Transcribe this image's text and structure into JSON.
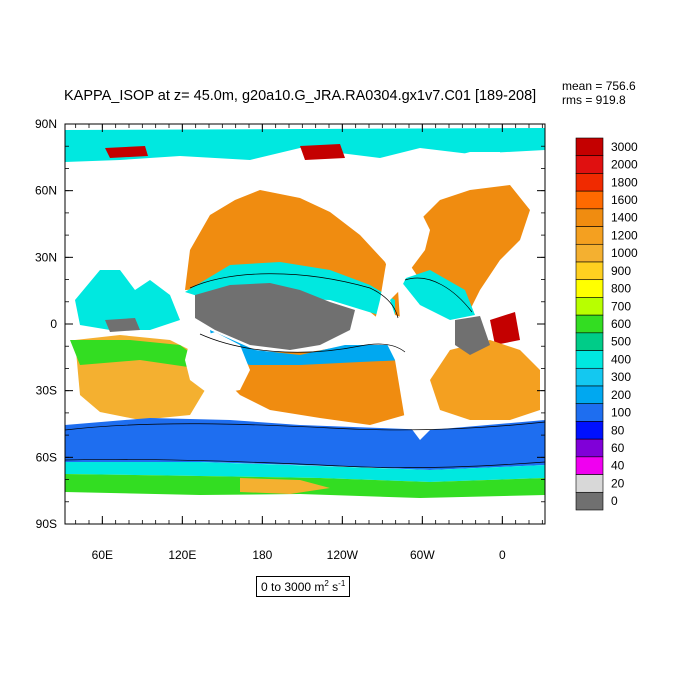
{
  "chart_data": {
    "type": "heatmap",
    "title": "KAPPA_ISOP at z=  45.0m, g20a10.G_JRA.RA0304.gx1v7.C01 [189-208]",
    "stats": {
      "mean": "mean = 756.6",
      "rms": "rms = 919.8"
    },
    "units": {
      "range_text": "0 to 3000 m",
      "exp": "2",
      "unit_tail": " s",
      "exp2": "-1"
    },
    "x_ticks": [
      {
        "lon": 60,
        "label": "60E"
      },
      {
        "lon": 120,
        "label": "120E"
      },
      {
        "lon": 180,
        "label": "180"
      },
      {
        "lon": 240,
        "label": "120W"
      },
      {
        "lon": 300,
        "label": "60W"
      },
      {
        "lon": 360,
        "label": "0"
      }
    ],
    "y_ticks": [
      {
        "lat": 90,
        "label": "90N"
      },
      {
        "lat": 60,
        "label": "60N"
      },
      {
        "lat": 30,
        "label": "30N"
      },
      {
        "lat": 0,
        "label": "0"
      },
      {
        "lat": -30,
        "label": "30S"
      },
      {
        "lat": -60,
        "label": "60S"
      },
      {
        "lat": -90,
        "label": "90S"
      }
    ],
    "lon_range": [
      32,
      392
    ],
    "lat_range": [
      -90,
      90
    ],
    "colorbar": {
      "levels": [
        "3000",
        "2000",
        "1800",
        "1600",
        "1400",
        "1200",
        "1000",
        "900",
        "800",
        "700",
        "600",
        "500",
        "400",
        "300",
        "200",
        "100",
        "80",
        "60",
        "40",
        "20",
        "0"
      ],
      "colors": [
        "#c40000",
        "#e01010",
        "#f02a00",
        "#ff6a00",
        "#f08c10",
        "#f4a020",
        "#f4b030",
        "#ffd020",
        "#ffff00",
        "#b8ff00",
        "#33dd22",
        "#00cc88",
        "#00e8e0",
        "#14c8f0",
        "#00a8f0",
        "#1e6ef0",
        "#0010ff",
        "#8000d8",
        "#f000f0",
        "#d8d8d8",
        "#707070"
      ]
    }
  }
}
